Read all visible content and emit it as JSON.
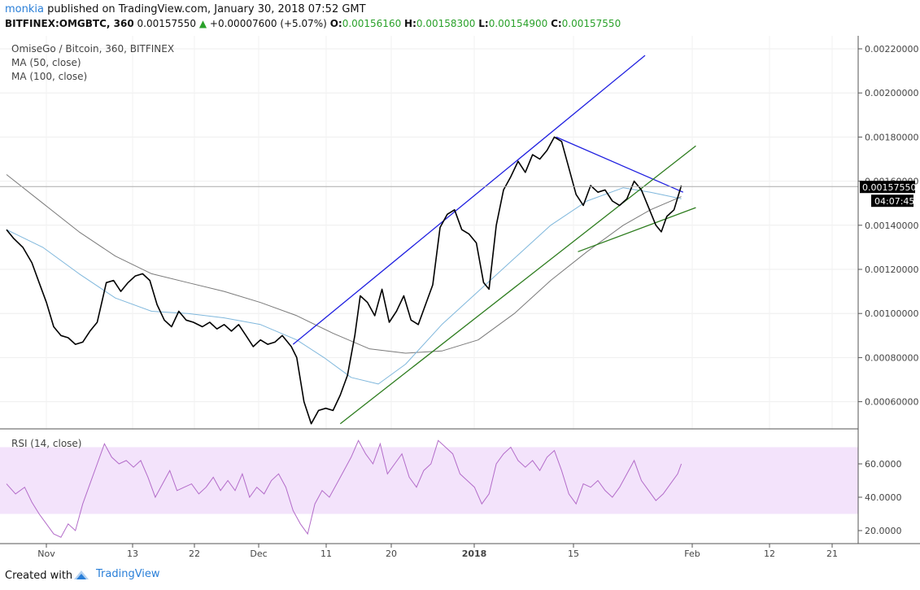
{
  "header": {
    "user": "monkia",
    "published_text": "published on TradingView.com, January 30, 2018 07:52 GMT",
    "symbol": "BITFINEX:OMGBTC, 360",
    "last": "0.00157550",
    "change": "+0.00007600 (+5.07%)",
    "o_label": "O:",
    "o_value": "0.00156160",
    "h_label": "H:",
    "h_value": "0.00158300",
    "l_label": "L:",
    "l_value": "0.00154900",
    "c_label": "C:",
    "c_value": "0.00157550"
  },
  "legend": {
    "title": "OmiseGo / Bitcoin, 360, BITFINEX",
    "ma1": "MA (50, close)",
    "ma2": "MA (100, close)",
    "rsi": "RSI (14, close)"
  },
  "price_tag": {
    "value": "0.00157550",
    "countdown": "04:07:45"
  },
  "footer": {
    "created_with": "Created with",
    "brand": "TradingView"
  },
  "colors": {
    "price_line": "#000000",
    "ma50": "#7fb7dc",
    "ma100": "#7a7a7a",
    "trend_blue": "#1f1fe0",
    "trend_green": "#2e7d1f",
    "rsi_line": "#b36cc9",
    "rsi_band": "#f3e3fb",
    "brand": "#2a7fd8"
  },
  "chart_data": [
    {
      "type": "line",
      "title": "OmiseGo / Bitcoin, 360, BITFINEX",
      "ylim": [
        0.0005,
        0.0023
      ],
      "y_ticks": [
        "0.00220000",
        "0.00200000",
        "0.00180000",
        "0.00160000",
        "0.00140000",
        "0.00120000",
        "0.00100000",
        "0.00080000",
        "0.00060000"
      ],
      "x_ticks": [
        "Nov",
        "13",
        "22",
        "Dec",
        "11",
        "20",
        "2018",
        "15",
        "Feb",
        "12",
        "21"
      ],
      "series": [
        {
          "name": "OmiseGo / Bitcoin",
          "role": "price",
          "points": [
            [
              0,
              0.00138
            ],
            [
              4,
              0.00134
            ],
            [
              9,
              0.0013
            ],
            [
              14,
              0.00123
            ],
            [
              18,
              0.00114
            ],
            [
              22,
              0.00105
            ],
            [
              26,
              0.00094
            ],
            [
              30,
              0.0009
            ],
            [
              34,
              0.00089
            ],
            [
              38,
              0.00086
            ],
            [
              42,
              0.00087
            ],
            [
              46,
              0.00092
            ],
            [
              50,
              0.00096
            ],
            [
              55,
              0.00114
            ],
            [
              59,
              0.00115
            ],
            [
              63,
              0.0011
            ],
            [
              67,
              0.00114
            ],
            [
              71,
              0.00117
            ],
            [
              75,
              0.00118
            ],
            [
              79,
              0.00115
            ],
            [
              83,
              0.00104
            ],
            [
              87,
              0.00097
            ],
            [
              91,
              0.00094
            ],
            [
              95,
              0.00101
            ],
            [
              99,
              0.00097
            ],
            [
              103,
              0.00096
            ],
            [
              108,
              0.00094
            ],
            [
              112,
              0.00096
            ],
            [
              116,
              0.00093
            ],
            [
              120,
              0.00095
            ],
            [
              124,
              0.00092
            ],
            [
              128,
              0.00095
            ],
            [
              132,
              0.0009
            ],
            [
              136,
              0.00085
            ],
            [
              140,
              0.00088
            ],
            [
              144,
              0.00086
            ],
            [
              148,
              0.00087
            ],
            [
              152,
              0.0009
            ],
            [
              157,
              0.00085
            ],
            [
              160,
              0.0008
            ],
            [
              164,
              0.0006
            ],
            [
              168,
              0.0005
            ],
            [
              172,
              0.00056
            ],
            [
              176,
              0.00057
            ],
            [
              180,
              0.00056
            ],
            [
              184,
              0.00063
            ],
            [
              188,
              0.00072
            ],
            [
              192,
              0.0009
            ],
            [
              195,
              0.00108
            ],
            [
              199,
              0.00105
            ],
            [
              203,
              0.00099
            ],
            [
              207,
              0.00111
            ],
            [
              211,
              0.00096
            ],
            [
              215,
              0.00101
            ],
            [
              219,
              0.00108
            ],
            [
              223,
              0.00097
            ],
            [
              227,
              0.00095
            ],
            [
              231,
              0.00104
            ],
            [
              235,
              0.00113
            ],
            [
              239,
              0.00139
            ],
            [
              243,
              0.00145
            ],
            [
              247,
              0.00147
            ],
            [
              251,
              0.00138
            ],
            [
              255,
              0.00136
            ],
            [
              259,
              0.00132
            ],
            [
              263,
              0.00114
            ],
            [
              266,
              0.00111
            ],
            [
              270,
              0.0014
            ],
            [
              274,
              0.00156
            ],
            [
              278,
              0.00162
            ],
            [
              282,
              0.00169
            ],
            [
              286,
              0.00164
            ],
            [
              290,
              0.00172
            ],
            [
              294,
              0.0017
            ],
            [
              298,
              0.00174
            ],
            [
              302,
              0.0018
            ],
            [
              306,
              0.00178
            ],
            [
              310,
              0.00166
            ],
            [
              314,
              0.00154
            ],
            [
              318,
              0.00149
            ],
            [
              322,
              0.00158
            ],
            [
              326,
              0.00155
            ],
            [
              330,
              0.00156
            ],
            [
              334,
              0.00151
            ],
            [
              338,
              0.00149
            ],
            [
              342,
              0.00152
            ],
            [
              346,
              0.0016
            ],
            [
              350,
              0.00156
            ],
            [
              354,
              0.00148
            ],
            [
              358,
              0.0014
            ],
            [
              361,
              0.00137
            ],
            [
              364,
              0.00144
            ],
            [
              368,
              0.00147
            ],
            [
              372,
              0.00158
            ]
          ]
        },
        {
          "name": "MA (50, close)",
          "role": "ma50",
          "points": [
            [
              0,
              0.00138
            ],
            [
              20,
              0.0013
            ],
            [
              40,
              0.00118
            ],
            [
              60,
              0.00107
            ],
            [
              80,
              0.00101
            ],
            [
              100,
              0.001
            ],
            [
              120,
              0.00098
            ],
            [
              140,
              0.00095
            ],
            [
              160,
              0.00088
            ],
            [
              175,
              0.0008
            ],
            [
              190,
              0.00071
            ],
            [
              205,
              0.00068
            ],
            [
              220,
              0.00077
            ],
            [
              240,
              0.00095
            ],
            [
              260,
              0.0011
            ],
            [
              280,
              0.00125
            ],
            [
              300,
              0.0014
            ],
            [
              320,
              0.00151
            ],
            [
              340,
              0.00157
            ],
            [
              355,
              0.00155
            ],
            [
              372,
              0.00152
            ]
          ]
        },
        {
          "name": "MA (100, close)",
          "role": "ma100",
          "points": [
            [
              0,
              0.00163
            ],
            [
              20,
              0.0015
            ],
            [
              40,
              0.00137
            ],
            [
              60,
              0.00126
            ],
            [
              80,
              0.00118
            ],
            [
              100,
              0.00114
            ],
            [
              120,
              0.0011
            ],
            [
              140,
              0.00105
            ],
            [
              160,
              0.00099
            ],
            [
              180,
              0.00091
            ],
            [
              200,
              0.00084
            ],
            [
              220,
              0.00082
            ],
            [
              240,
              0.00083
            ],
            [
              260,
              0.00088
            ],
            [
              280,
              0.001
            ],
            [
              300,
              0.00115
            ],
            [
              320,
              0.00128
            ],
            [
              340,
              0.0014
            ],
            [
              355,
              0.00147
            ],
            [
              372,
              0.00153
            ]
          ]
        },
        {
          "name": "",
          "role": "trend_blue_upper",
          "points": [
            [
              158,
              0.00086
            ],
            [
              352,
              0.00217
            ]
          ]
        },
        {
          "name": "",
          "role": "trend_blue_down",
          "points": [
            [
              303,
              0.0018
            ],
            [
              373,
              0.00155
            ]
          ]
        },
        {
          "name": "",
          "role": "trend_green_upper",
          "points": [
            [
              184,
              0.0005
            ],
            [
              380,
              0.00176
            ]
          ]
        },
        {
          "name": "",
          "role": "trend_green_lower",
          "points": [
            [
              315,
              0.00128
            ],
            [
              380,
              0.00148
            ]
          ]
        }
      ]
    },
    {
      "type": "line",
      "title": "RSI (14, close)",
      "ylim": [
        10,
        80
      ],
      "band": [
        30,
        70
      ],
      "y_ticks": [
        "60.0000",
        "40.0000",
        "20.0000"
      ],
      "series": [
        {
          "name": "RSI (14, close)",
          "points": [
            [
              0,
              48
            ],
            [
              5,
              42
            ],
            [
              10,
              46
            ],
            [
              14,
              37
            ],
            [
              18,
              30
            ],
            [
              22,
              24
            ],
            [
              26,
              18
            ],
            [
              30,
              16
            ],
            [
              34,
              24
            ],
            [
              38,
              20
            ],
            [
              42,
              36
            ],
            [
              46,
              48
            ],
            [
              50,
              60
            ],
            [
              54,
              72
            ],
            [
              58,
              64
            ],
            [
              62,
              60
            ],
            [
              66,
              62
            ],
            [
              70,
              58
            ],
            [
              74,
              62
            ],
            [
              78,
              52
            ],
            [
              82,
              40
            ],
            [
              86,
              48
            ],
            [
              90,
              56
            ],
            [
              94,
              44
            ],
            [
              98,
              46
            ],
            [
              102,
              48
            ],
            [
              106,
              42
            ],
            [
              110,
              46
            ],
            [
              114,
              52
            ],
            [
              118,
              44
            ],
            [
              122,
              50
            ],
            [
              126,
              44
            ],
            [
              130,
              54
            ],
            [
              134,
              40
            ],
            [
              138,
              46
            ],
            [
              142,
              42
            ],
            [
              146,
              50
            ],
            [
              150,
              54
            ],
            [
              154,
              46
            ],
            [
              158,
              32
            ],
            [
              162,
              24
            ],
            [
              166,
              18
            ],
            [
              170,
              36
            ],
            [
              174,
              44
            ],
            [
              178,
              40
            ],
            [
              182,
              48
            ],
            [
              186,
              56
            ],
            [
              190,
              64
            ],
            [
              194,
              74
            ],
            [
              198,
              66
            ],
            [
              202,
              60
            ],
            [
              206,
              72
            ],
            [
              210,
              54
            ],
            [
              214,
              60
            ],
            [
              218,
              66
            ],
            [
              222,
              52
            ],
            [
              226,
              46
            ],
            [
              230,
              56
            ],
            [
              234,
              60
            ],
            [
              238,
              74
            ],
            [
              242,
              70
            ],
            [
              246,
              66
            ],
            [
              250,
              54
            ],
            [
              254,
              50
            ],
            [
              258,
              46
            ],
            [
              262,
              36
            ],
            [
              266,
              42
            ],
            [
              270,
              60
            ],
            [
              274,
              66
            ],
            [
              278,
              70
            ],
            [
              282,
              62
            ],
            [
              286,
              58
            ],
            [
              290,
              62
            ],
            [
              294,
              56
            ],
            [
              298,
              64
            ],
            [
              302,
              68
            ],
            [
              306,
              56
            ],
            [
              310,
              42
            ],
            [
              314,
              36
            ],
            [
              318,
              48
            ],
            [
              322,
              46
            ],
            [
              326,
              50
            ],
            [
              330,
              44
            ],
            [
              334,
              40
            ],
            [
              338,
              46
            ],
            [
              342,
              54
            ],
            [
              346,
              62
            ],
            [
              350,
              50
            ],
            [
              354,
              44
            ],
            [
              358,
              38
            ],
            [
              362,
              42
            ],
            [
              366,
              48
            ],
            [
              370,
              54
            ],
            [
              372,
              60
            ]
          ]
        }
      ]
    }
  ]
}
